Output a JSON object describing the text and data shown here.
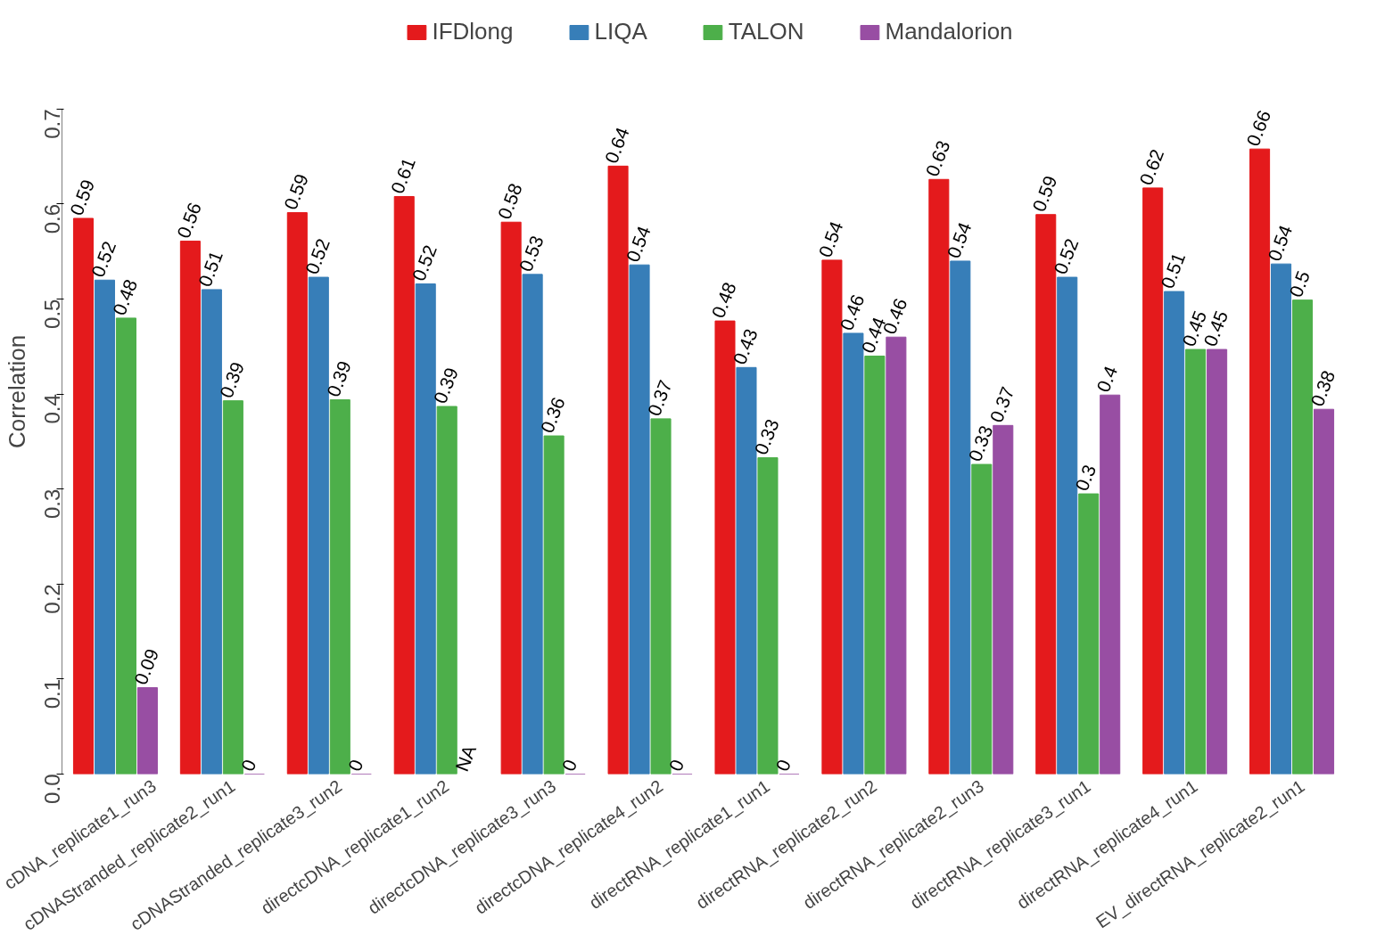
{
  "chart_data": {
    "type": "bar",
    "ylabel": "Correlation",
    "legend": "top",
    "ylim": [
      0,
      0.7
    ],
    "yticks": [
      {
        "value": 0,
        "label": "0.0"
      },
      {
        "value": 0.1,
        "label": "0.1"
      },
      {
        "value": 0.2,
        "label": "0.2"
      },
      {
        "value": 0.3,
        "label": "0.3"
      },
      {
        "value": 0.4,
        "label": "0.4"
      },
      {
        "value": 0.5,
        "label": "0.5"
      },
      {
        "value": 0.6,
        "label": "0.6"
      },
      {
        "value": 0.7,
        "label": "0.7"
      }
    ],
    "categories": [
      "cDNA_replicate1_run3",
      "cDNAStranded_replicate2_run1",
      "cDNAStranded_replicate3_run2",
      "directcDNA_replicate1_run2",
      "directcDNA_replicate3_run3",
      "directcDNA_replicate4_run2",
      "directRNA_replicate1_run1",
      "directRNA_replicate2_run2",
      "directRNA_replicate2_run3",
      "directRNA_replicate3_run1",
      "directRNA_replicate4_run1",
      "EV_directRNA_replicate2_run1"
    ],
    "series": [
      {
        "name": "IFDlong",
        "color": "#e41a1c",
        "values": [
          0.585,
          0.561,
          0.591,
          0.608,
          0.581,
          0.64,
          0.477,
          0.541,
          0.626,
          0.589,
          0.617,
          0.658
        ],
        "value_labels": [
          "0.59",
          "0.56",
          "0.59",
          "0.61",
          "0.58",
          "0.64",
          "0.48",
          "0.54",
          "0.63",
          "0.59",
          "0.62",
          "0.66"
        ]
      },
      {
        "name": "LIQA",
        "color": "#377eb8",
        "values": [
          0.52,
          0.51,
          0.523,
          0.516,
          0.526,
          0.536,
          0.428,
          0.464,
          0.54,
          0.523,
          0.508,
          0.537
        ],
        "value_labels": [
          "0.52",
          "0.51",
          "0.52",
          "0.52",
          "0.53",
          "0.54",
          "0.43",
          "0.46",
          "0.54",
          "0.52",
          "0.51",
          "0.54"
        ]
      },
      {
        "name": "TALON",
        "color": "#4daf4a",
        "values": [
          0.48,
          0.393,
          0.394,
          0.387,
          0.356,
          0.374,
          0.333,
          0.44,
          0.326,
          0.295,
          0.447,
          0.499
        ],
        "value_labels": [
          "0.48",
          "0.39",
          "0.39",
          "0.39",
          "0.36",
          "0.37",
          "0.33",
          "0.44",
          "0.33",
          "0.3",
          "0.45",
          "0.5"
        ]
      },
      {
        "name": "Mandalorion",
        "color": "#984ea3",
        "values": [
          0.091,
          0,
          0,
          null,
          0,
          0,
          0,
          0.46,
          0.367,
          0.399,
          0.447,
          0.384
        ],
        "value_labels": [
          "0.09",
          "0",
          "0",
          "NA",
          "0",
          "0",
          "0",
          "0.46",
          "0.37",
          "0.4",
          "0.45",
          "0.38"
        ]
      }
    ]
  }
}
